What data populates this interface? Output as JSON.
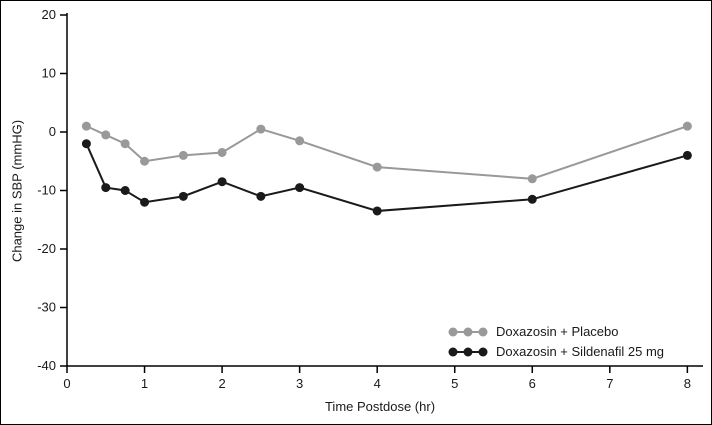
{
  "chart_data": {
    "type": "line",
    "title": "",
    "xlabel": "Time Postdose (hr)",
    "ylabel": "Change in SBP (mmHG)",
    "x": [
      0.25,
      0.5,
      0.75,
      1,
      1.5,
      2,
      2.5,
      3,
      4,
      6,
      8
    ],
    "series": [
      {
        "name": "Doxazosin + Placebo",
        "color": "#999999",
        "values": [
          1,
          -0.5,
          -2,
          -5,
          -4,
          -3.5,
          0.5,
          -1.5,
          -6,
          -8,
          1
        ]
      },
      {
        "name": "Doxazosin + Sildenafil 25 mg",
        "color": "#1a1a1a",
        "values": [
          -2,
          -9.5,
          -10,
          -12,
          -11,
          -8.5,
          -11,
          -9.5,
          -13.5,
          -11.5,
          -4
        ]
      }
    ],
    "xlim": [
      0,
      8.15
    ],
    "ylim": [
      -40,
      20
    ],
    "xticks": [
      0,
      1,
      2,
      3,
      4,
      5,
      6,
      7,
      8
    ],
    "yticks": [
      20,
      10,
      0,
      -10,
      -20,
      -30,
      -40
    ],
    "grid": false,
    "legend_position": "bottom-right",
    "axis_color": "#000000",
    "background_color": "#ffffff"
  }
}
